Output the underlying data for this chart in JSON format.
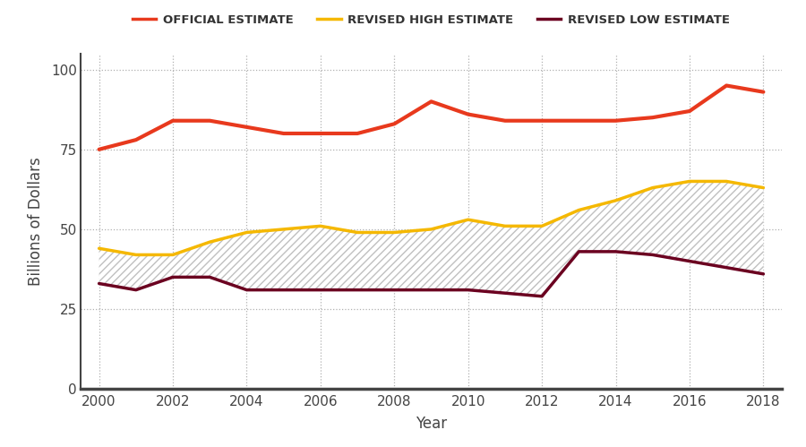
{
  "years": [
    2000,
    2001,
    2002,
    2003,
    2004,
    2005,
    2006,
    2007,
    2008,
    2009,
    2010,
    2011,
    2012,
    2013,
    2014,
    2015,
    2016,
    2017,
    2018
  ],
  "official": [
    75,
    78,
    84,
    84,
    82,
    80,
    80,
    80,
    83,
    90,
    86,
    84,
    84,
    84,
    84,
    85,
    87,
    95,
    93
  ],
  "revised_high": [
    44,
    42,
    42,
    46,
    49,
    50,
    51,
    49,
    49,
    50,
    53,
    51,
    51,
    56,
    59,
    63,
    65,
    65,
    63
  ],
  "revised_low": [
    33,
    31,
    35,
    35,
    31,
    31,
    31,
    31,
    31,
    31,
    31,
    30,
    29,
    43,
    43,
    42,
    40,
    38,
    36
  ],
  "official_color": "#E8391D",
  "revised_high_color": "#F5B800",
  "revised_low_color": "#6B0020",
  "background_color": "#ffffff",
  "xlabel": "Year",
  "ylabel": "Billions of Dollars",
  "ylim": [
    0,
    105
  ],
  "yticks": [
    0,
    25,
    50,
    75,
    100
  ],
  "xlim": [
    1999.5,
    2018.5
  ],
  "xticks": [
    2000,
    2002,
    2004,
    2006,
    2008,
    2010,
    2012,
    2014,
    2016,
    2018
  ],
  "legend_labels": [
    "OFFICIAL ESTIMATE",
    "REVISED HIGH ESTIMATE",
    "REVISED LOW ESTIMATE"
  ],
  "linewidth": 2.5,
  "figsize": [
    9.0,
    4.99
  ],
  "dpi": 100
}
